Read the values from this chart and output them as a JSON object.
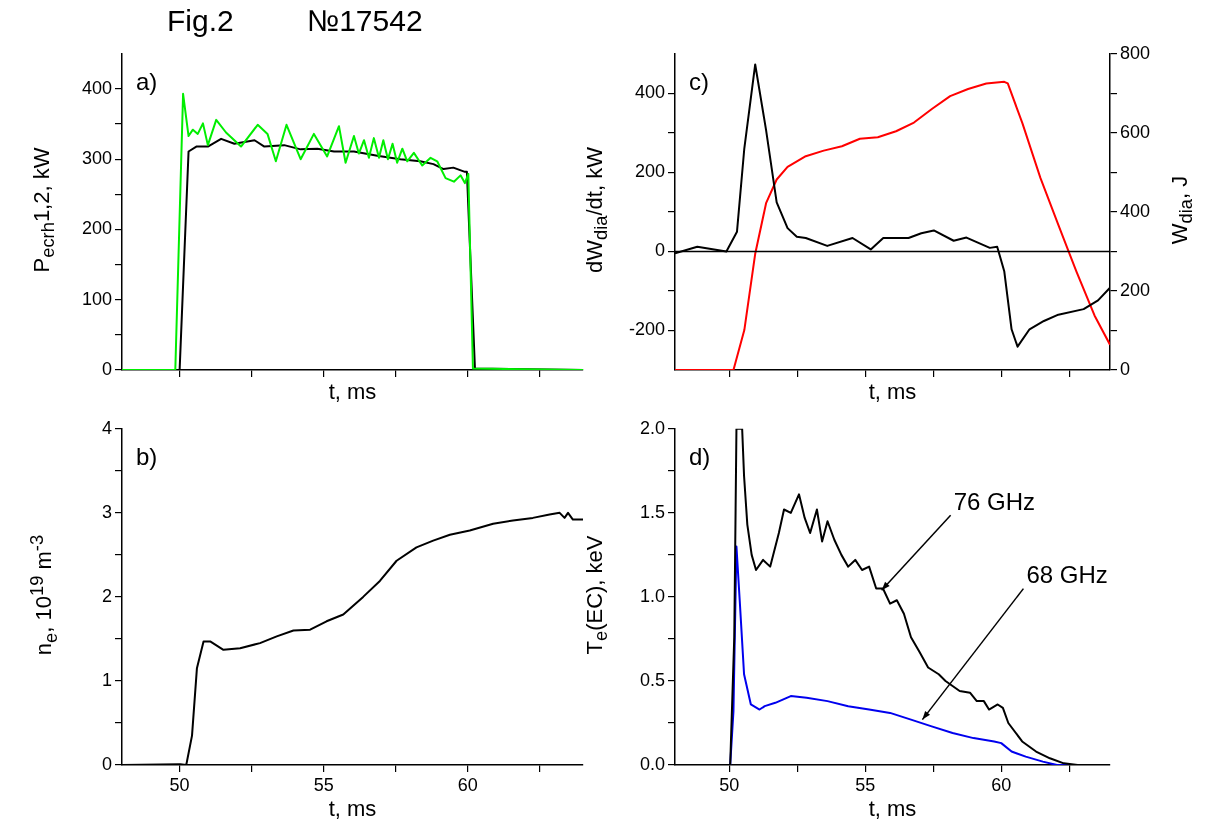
{
  "chart_data": [
    {
      "type": "line",
      "title": "Fig.2",
      "subtitle": "№17542",
      "xlabel": "t, ms",
      "ylabel": "P$_{ecrh}$1,2, kW",
      "annotations": [
        "a)"
      ],
      "tick_labels": "y",
      "legend": false,
      "marker": "none",
      "line_style": "solid",
      "xlim": [
        48,
        64
      ],
      "xticks": [
        50,
        {
          "value": 52.5,
          "label": null
        },
        55,
        {
          "value": 57.5,
          "label": null
        },
        60,
        {
          "value": 62.5,
          "label": null
        }
      ],
      "ylim": [
        0,
        450
      ],
      "yticks": [
        0,
        {
          "value": 50,
          "label": null
        },
        100,
        {
          "value": 150,
          "label": null
        },
        200,
        {
          "value": 250,
          "label": null
        },
        300,
        {
          "value": 350,
          "label": null
        },
        400
      ],
      "series": [
        {
          "color": "#00ee00",
          "x": [
            48,
            49.85,
            50.12,
            50.31,
            50.46,
            50.63,
            50.81,
            50.98,
            51.27,
            51.61,
            52.13,
            52.71,
            53.05,
            53.34,
            53.71,
            54.2,
            54.66,
            55.12,
            55.53,
            55.76,
            56.05,
            56.22,
            56.4,
            56.57,
            56.74,
            56.92,
            57.07,
            57.23,
            57.39,
            57.55,
            57.73,
            57.9,
            58.13,
            58.42,
            58.71,
            58.94,
            59.23,
            59.52,
            59.75,
            59.9,
            60.02,
            60.18,
            64
          ],
          "values": [
            0,
            0,
            393,
            333,
            342,
            336,
            351,
            320,
            356,
            338,
            318,
            349,
            336,
            297,
            349,
            300,
            336,
            304,
            347,
            295,
            333,
            308,
            327,
            302,
            330,
            302,
            327,
            300,
            322,
            295,
            315,
            297,
            309,
            291,
            302,
            297,
            273,
            268,
            277,
            266,
            279,
            2,
            0
          ]
        },
        {
          "color": "#000000",
          "x": [
            48,
            50.0,
            50.31,
            50.58,
            50.98,
            51.44,
            51.9,
            52.6,
            52.94,
            53.63,
            54.2,
            54.78,
            55.36,
            56.05,
            56.86,
            57.66,
            58.35,
            58.81,
            59.16,
            59.5,
            59.9,
            59.97,
            60.25,
            64
          ],
          "values": [
            0,
            0,
            311,
            318,
            318,
            329,
            322,
            327,
            318,
            320,
            314,
            315,
            311,
            311,
            305,
            300,
            297,
            293,
            286,
            288,
            282,
            282,
            2,
            0
          ]
        }
      ]
    },
    {
      "type": "line",
      "xlabel": "t, ms",
      "ylabel": "dW$_{dia}$/dt, kW",
      "y2label": "W$_{dia}$, J",
      "annotations": [
        "c)"
      ],
      "tick_labels": "y",
      "legend": false,
      "marker": "none",
      "line_style": "solid",
      "xlim": [
        48,
        64
      ],
      "xticks": [
        50,
        {
          "value": 52.5,
          "label": null
        },
        55,
        {
          "value": 57.5,
          "label": null
        },
        60,
        {
          "value": 62.5,
          "label": null
        }
      ],
      "ylim": [
        -300,
        500
      ],
      "yticks": [
        -200,
        {
          "value": -100,
          "label": null
        },
        0,
        {
          "value": 100,
          "label": null
        },
        200,
        {
          "value": 300,
          "label": null
        },
        400
      ],
      "y2lim": [
        0,
        800
      ],
      "y2ticks": [
        0,
        {
          "value": 100,
          "label": null
        },
        200,
        {
          "value": 300,
          "label": null
        },
        400,
        {
          "value": 500,
          "label": null
        },
        600,
        {
          "value": 700,
          "label": null
        },
        800
      ],
      "ref_lines": [
        {
          "axis": "y",
          "value": 0,
          "color": "#000000"
        }
      ],
      "series": [
        {
          "color": "#000000",
          "x": [
            48,
            48.82,
            49.89,
            50.28,
            50.55,
            50.95,
            51.35,
            51.74,
            52.14,
            52.48,
            52.81,
            53.6,
            54.53,
            55.2,
            55.66,
            56.59,
            57.06,
            57.52,
            58.25,
            58.72,
            59.58,
            59.85,
            60.11,
            60.38,
            60.6,
            61.04,
            61.57,
            62.1,
            63.03,
            63.56,
            64
          ],
          "values": [
            -5,
            12,
            0,
            50,
            261,
            473,
            307,
            124,
            59,
            37,
            34,
            14,
            34,
            5,
            34,
            34,
            46,
            53,
            27,
            35,
            9,
            12,
            -50,
            -197,
            -241,
            -197,
            -176,
            -160,
            -146,
            -124,
            -92
          ]
        },
        {
          "color": "#ff0000",
          "axis": "y2",
          "x": [
            48,
            50.15,
            50.55,
            50.95,
            51.35,
            51.74,
            52.14,
            52.81,
            53.47,
            54.14,
            54.8,
            55.46,
            56.13,
            56.79,
            57.46,
            58.12,
            58.78,
            59.45,
            60.11,
            60.24,
            60.78,
            61.44,
            62.1,
            62.77,
            63.43,
            64
          ],
          "values": [
            0,
            0,
            101,
            294,
            422,
            482,
            514,
            541,
            555,
            566,
            585,
            589,
            604,
            626,
            661,
            693,
            711,
            725,
            729,
            725,
            624,
            486,
            367,
            248,
            138,
            64
          ]
        }
      ]
    },
    {
      "type": "line",
      "xlabel": "t, ms",
      "ylabel": "n$_{e}$, 10$^{19}$ m$^{-3}$",
      "annotations": [
        "b)"
      ],
      "legend": false,
      "marker": "none",
      "line_style": "solid",
      "xlim": [
        48,
        64
      ],
      "xticks": [
        50,
        {
          "value": 52.5,
          "label": null
        },
        55,
        {
          "value": 57.5,
          "label": null
        },
        60,
        {
          "value": 62.5,
          "label": null
        }
      ],
      "ylim": [
        0,
        4
      ],
      "yticks": [
        0,
        {
          "value": 0.5,
          "label": null
        },
        1,
        {
          "value": 1.5,
          "label": null
        },
        2,
        {
          "value": 2.5,
          "label": null
        },
        3,
        {
          "value": 3.5,
          "label": null
        },
        4
      ],
      "series": [
        {
          "color": "#000000",
          "x": [
            48,
            50.02,
            50.23,
            50.43,
            50.6,
            50.83,
            51.06,
            51.52,
            52.1,
            52.79,
            53.37,
            53.95,
            54.53,
            55.1,
            55.68,
            56.37,
            56.95,
            57.53,
            58.22,
            58.8,
            59.38,
            60.07,
            60.88,
            61.57,
            62.26,
            62.84,
            63.19,
            63.36,
            63.48,
            63.65,
            64
          ],
          "values": [
            0,
            0.01,
            0,
            0.35,
            1.15,
            1.47,
            1.47,
            1.37,
            1.39,
            1.45,
            1.53,
            1.6,
            1.61,
            1.71,
            1.79,
            2.0,
            2.19,
            2.43,
            2.59,
            2.67,
            2.74,
            2.79,
            2.87,
            2.91,
            2.94,
            2.98,
            3.0,
            2.94,
            3.0,
            2.92,
            2.92
          ]
        }
      ]
    },
    {
      "type": "line",
      "xlabel": "t, ms",
      "ylabel": "T$_{e}$(EC), keV",
      "legend": false,
      "marker": "none",
      "line_style": "solid",
      "annotations": [
        "d)",
        {
          "text": "76 GHz",
          "x": 55.6,
          "y": 1.04
        },
        {
          "text": "68 GHz",
          "x": 57.1,
          "y": 0.27
        }
      ],
      "xlim": [
        48,
        64
      ],
      "xticks": [
        50,
        {
          "value": 52.5,
          "label": null
        },
        55,
        {
          "value": 57.5,
          "label": null
        },
        60,
        {
          "value": 62.5,
          "label": null
        }
      ],
      "ylim": [
        0,
        2
      ],
      "yticks": [
        {
          "value": 0,
          "label": "0.0"
        },
        {
          "value": 0.25,
          "label": null
        },
        {
          "value": 0.5,
          "label": "0.5"
        },
        {
          "value": 0.75,
          "label": null
        },
        {
          "value": 1,
          "label": "1.0"
        },
        {
          "value": 1.25,
          "label": null
        },
        {
          "value": 1.5,
          "label": "1.5"
        },
        {
          "value": 1.75,
          "label": null
        },
        {
          "value": 2,
          "label": "2.0"
        }
      ],
      "series": [
        {
          "color": "#000000",
          "x": [
            48,
            50.03,
            50.18,
            50.26,
            50.47,
            50.54,
            50.66,
            50.82,
            50.98,
            51.24,
            51.5,
            51.82,
            52.01,
            52.26,
            52.56,
            52.77,
            52.97,
            53.22,
            53.41,
            53.61,
            53.86,
            54.12,
            54.37,
            54.63,
            54.88,
            55.14,
            55.4,
            55.65,
            55.91,
            56.16,
            56.42,
            56.68,
            57.0,
            57.31,
            57.7,
            57.95,
            58.47,
            58.85,
            59.1,
            59.36,
            59.55,
            59.87,
            60.06,
            60.26,
            60.77,
            61.28,
            61.79,
            62.3,
            62.81,
            64
          ],
          "values": [
            0,
            0,
            0.76,
            2.0,
            2.0,
            1.72,
            1.43,
            1.25,
            1.16,
            1.22,
            1.18,
            1.38,
            1.52,
            1.5,
            1.61,
            1.47,
            1.38,
            1.52,
            1.33,
            1.45,
            1.34,
            1.25,
            1.18,
            1.22,
            1.16,
            1.18,
            1.05,
            1.05,
            0.96,
            0.98,
            0.9,
            0.76,
            0.67,
            0.58,
            0.54,
            0.5,
            0.44,
            0.43,
            0.38,
            0.38,
            0.33,
            0.36,
            0.34,
            0.25,
            0.14,
            0.08,
            0.04,
            0.01,
            0,
            0
          ]
        },
        {
          "color": "#0000ee",
          "x": [
            48,
            50.03,
            50.15,
            50.26,
            50.38,
            50.54,
            50.79,
            51.11,
            51.3,
            51.69,
            52.26,
            52.84,
            53.61,
            54.37,
            55.14,
            55.91,
            56.68,
            57.44,
            58.21,
            58.98,
            59.74,
            60.0,
            60.38,
            60.9,
            61.53,
            62.05,
            64
          ],
          "values": [
            0,
            0,
            0.32,
            1.3,
            0.98,
            0.54,
            0.36,
            0.33,
            0.35,
            0.37,
            0.41,
            0.4,
            0.38,
            0.35,
            0.33,
            0.31,
            0.27,
            0.23,
            0.19,
            0.16,
            0.14,
            0.13,
            0.08,
            0.05,
            0.02,
            0,
            0
          ]
        }
      ]
    }
  ]
}
